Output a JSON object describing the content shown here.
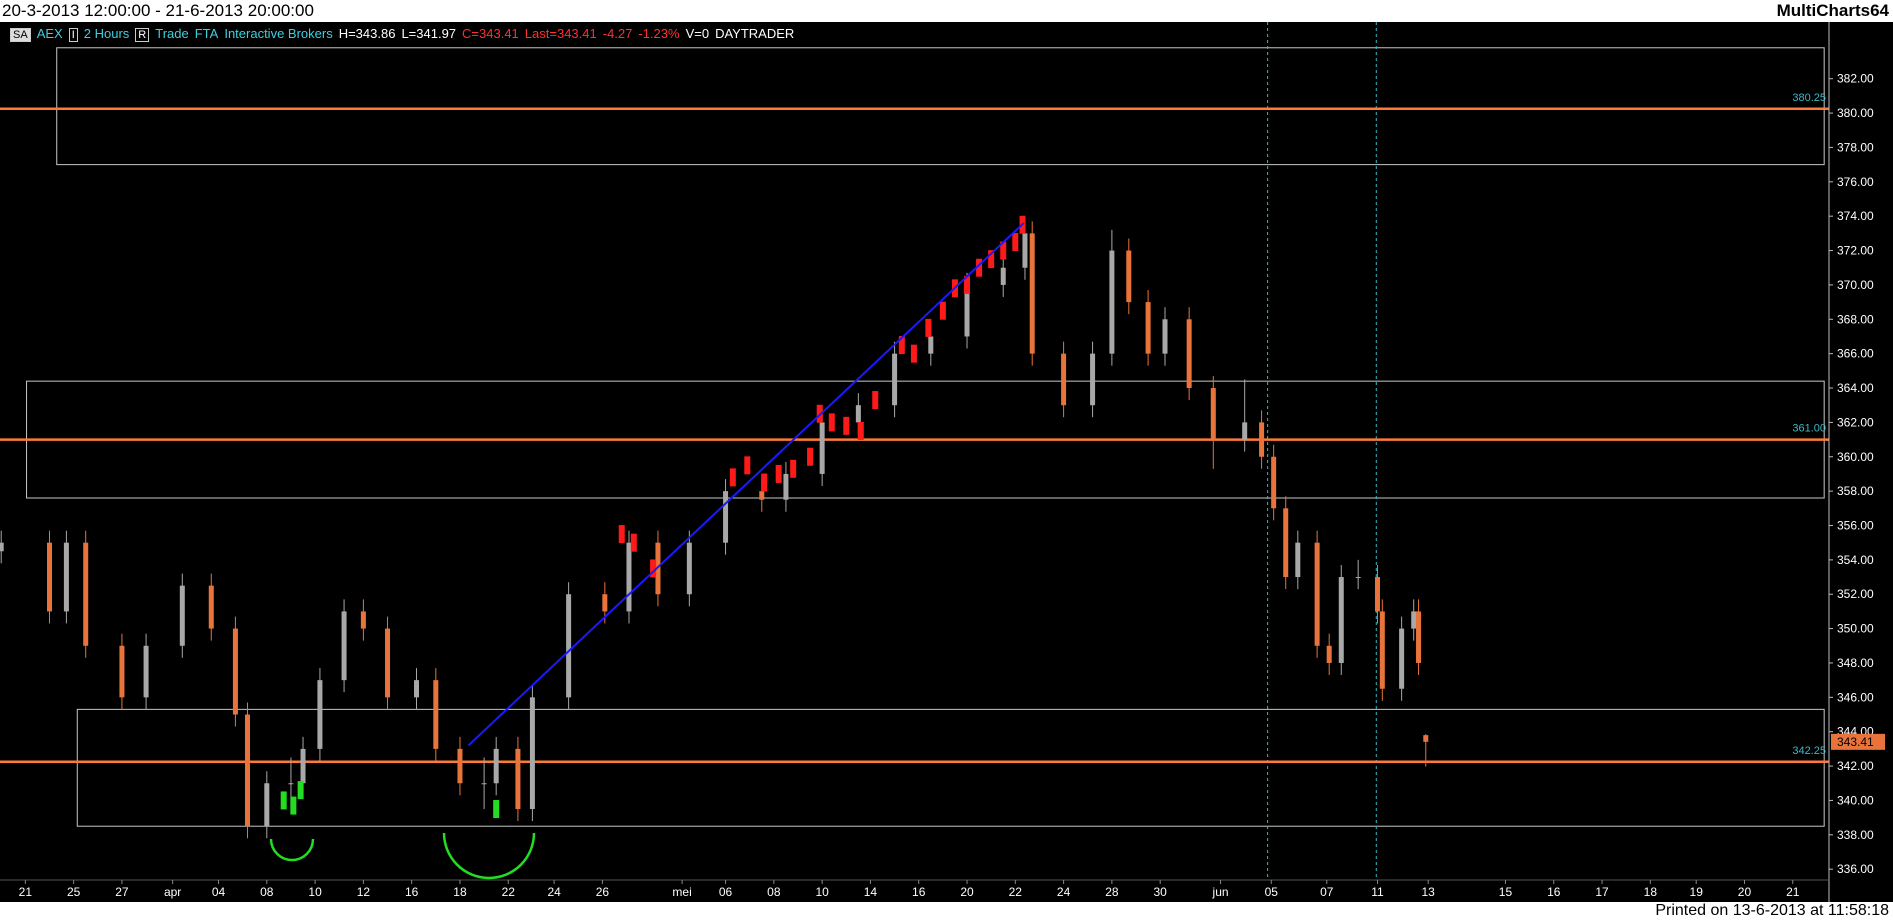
{
  "header": {
    "range": "20-3-2013 12:00:00 - 21-6-2013 20:00:00",
    "app": "MultiCharts64",
    "footer": "Printed on 13-6-2013 at 11:58:18"
  },
  "toolbar": {
    "badge": "SA",
    "symbol": "AEX",
    "i": "I",
    "interval": "2 Hours",
    "r": "R",
    "trade": "Trade",
    "fta": "FTA",
    "broker": "Interactive Brokers",
    "high": "H=343.86",
    "low": "L=341.97",
    "close": "C=343.41",
    "last": "Last=343.41",
    "change": "-4.27",
    "change_pct": "-1.23%",
    "volume": "V=0",
    "template": "DAYTRADER"
  },
  "chart_data": {
    "type": "candlestick",
    "x": [
      0,
      2,
      2.7,
      3.5,
      5,
      6,
      7.5,
      8.7,
      9.7,
      10.2,
      11,
      12,
      12.5,
      13.2,
      14.2,
      15,
      16,
      17.2,
      18,
      19,
      20,
      20.5,
      21.4,
      22,
      23.5,
      25,
      26,
      27.2,
      28.5,
      30,
      31.5,
      32.5,
      34,
      35.5,
      37,
      38.5,
      40,
      41.5,
      42.4,
      42.7,
      44,
      45.2,
      46,
      46.7,
      47.5,
      48.2,
      49.2,
      50.2,
      51.5,
      52.2,
      52.7,
      53.2,
      53.7,
      54.5,
      55,
      55.5,
      56.2,
      57,
      57.2,
      58,
      58.5,
      58.7,
      59
    ],
    "open": [
      354.5,
      355,
      351,
      355,
      349,
      346,
      349,
      352.5,
      350,
      345,
      338.5,
      341,
      341,
      343,
      347,
      351,
      350,
      346,
      347,
      343,
      341,
      341,
      343,
      339.5,
      346,
      352,
      351,
      355,
      352,
      355,
      358,
      357.5,
      359,
      362,
      363,
      366,
      367,
      370,
      371,
      373,
      366,
      363,
      366,
      372,
      369,
      366,
      368,
      364,
      361,
      362,
      360,
      357,
      353,
      355,
      349,
      348,
      353,
      353,
      351,
      346.5,
      350,
      351,
      343.8
    ],
    "high": [
      355.7,
      355.7,
      355.7,
      355.7,
      349.7,
      349.7,
      353.2,
      353.2,
      350.7,
      345.7,
      341.7,
      342.5,
      343.7,
      347.7,
      351.7,
      351.7,
      350.7,
      347.7,
      347.7,
      343.7,
      342.5,
      343.7,
      343.7,
      346.7,
      352.7,
      352.7,
      355.7,
      355.7,
      355.7,
      358.7,
      358.7,
      359.7,
      362.7,
      363.7,
      366.7,
      367.7,
      370.7,
      371.7,
      373.7,
      373.7,
      366.7,
      366.7,
      373.2,
      372.7,
      369.7,
      368.7,
      368.7,
      364.7,
      364.5,
      362.7,
      360.7,
      357.7,
      355.7,
      355.7,
      349.7,
      353.7,
      354,
      353.7,
      351.7,
      350.7,
      351.7,
      351.7,
      343.86
    ],
    "low": [
      353.8,
      350.3,
      350.3,
      348.3,
      345.3,
      345.3,
      348.3,
      349.3,
      344.3,
      337.8,
      337.8,
      339.5,
      340.3,
      342.3,
      346.3,
      349.3,
      345.3,
      345.3,
      342.3,
      340.3,
      339.5,
      340.3,
      338.8,
      338.8,
      345.3,
      350.3,
      350.3,
      351.3,
      351.3,
      354.3,
      356.8,
      356.8,
      358.3,
      361.3,
      362.3,
      365.3,
      366.3,
      369.3,
      370.3,
      365.3,
      362.3,
      362.3,
      365.3,
      368.3,
      365.3,
      365.3,
      363.3,
      359.3,
      360.3,
      359.3,
      356.3,
      352.3,
      352.3,
      348.3,
      347.3,
      347.3,
      352.3,
      350.3,
      345.8,
      345.8,
      349.3,
      347.3,
      341.97
    ],
    "close": [
      355,
      351,
      355,
      349,
      346,
      349,
      352.5,
      350,
      345,
      338.5,
      341,
      341,
      343,
      347,
      351,
      350,
      346,
      347,
      343,
      341,
      341,
      343,
      339.5,
      346,
      352,
      351,
      355,
      352,
      355,
      358,
      357.5,
      359,
      362,
      363,
      366,
      367,
      370,
      371,
      373,
      366,
      363,
      366,
      372,
      369,
      366,
      368,
      364,
      361,
      362,
      360,
      357,
      353,
      355,
      349,
      348,
      353,
      353,
      351,
      346.5,
      350,
      351,
      348,
      343.41
    ],
    "up_color": "#a8a8a8",
    "down_color": "#e8743b",
    "xlim": [
      -0.05,
      75.7
    ],
    "ylim": [
      335.37,
      385.3
    ],
    "xticks": [
      {
        "value": 1,
        "label": "21"
      },
      {
        "value": 3,
        "label": "25"
      },
      {
        "value": 5,
        "label": "27"
      },
      {
        "value": 7.1,
        "label": "apr"
      },
      {
        "value": 9,
        "label": "04"
      },
      {
        "value": 11,
        "label": "08"
      },
      {
        "value": 13,
        "label": "10"
      },
      {
        "value": 15,
        "label": "12"
      },
      {
        "value": 17,
        "label": "16"
      },
      {
        "value": 19,
        "label": "18"
      },
      {
        "value": 21,
        "label": "22"
      },
      {
        "value": 22.9,
        "label": "24"
      },
      {
        "value": 24.9,
        "label": "26"
      },
      {
        "value": 28.2,
        "label": "mei"
      },
      {
        "value": 30,
        "label": "06"
      },
      {
        "value": 32,
        "label": "08"
      },
      {
        "value": 34,
        "label": "10"
      },
      {
        "value": 36,
        "label": "14"
      },
      {
        "value": 38,
        "label": "16"
      },
      {
        "value": 40,
        "label": "20"
      },
      {
        "value": 42,
        "label": "22"
      },
      {
        "value": 44,
        "label": "24"
      },
      {
        "value": 46,
        "label": "28"
      },
      {
        "value": 48,
        "label": "30"
      },
      {
        "value": 50.5,
        "label": "jun"
      },
      {
        "value": 52.6,
        "label": "05"
      },
      {
        "value": 54.9,
        "label": "07"
      },
      {
        "value": 57,
        "label": "11"
      },
      {
        "value": 59.1,
        "label": "13"
      },
      {
        "value": 62.3,
        "label": "15"
      },
      {
        "value": 64.3,
        "label": "16"
      },
      {
        "value": 66.3,
        "label": "17"
      },
      {
        "value": 68.3,
        "label": "18"
      },
      {
        "value": 70.2,
        "label": "19"
      },
      {
        "value": 72.2,
        "label": "20"
      },
      {
        "value": 74.2,
        "label": "21"
      }
    ],
    "yticks": [
      {
        "value": 336,
        "label": "336.00"
      },
      {
        "value": 338,
        "label": "338.00"
      },
      {
        "value": 340,
        "label": "340.00"
      },
      {
        "value": 342,
        "label": "342.00"
      },
      {
        "value": 344,
        "label": "344.00"
      },
      {
        "value": 346,
        "label": "346.00"
      },
      {
        "value": 348,
        "label": "348.00"
      },
      {
        "value": 350,
        "label": "350.00"
      },
      {
        "value": 352,
        "label": "352.00"
      },
      {
        "value": 354,
        "label": "354.00"
      },
      {
        "value": 356,
        "label": "356.00"
      },
      {
        "value": 358,
        "label": "358.00"
      },
      {
        "value": 360,
        "label": "360.00"
      },
      {
        "value": 362,
        "label": "362.00"
      },
      {
        "value": 364,
        "label": "364.00"
      },
      {
        "value": 366,
        "label": "366.00"
      },
      {
        "value": 368,
        "label": "368.00"
      },
      {
        "value": 370,
        "label": "370.00"
      },
      {
        "value": 372,
        "label": "372.00"
      },
      {
        "value": 374,
        "label": "374.00"
      },
      {
        "value": 376,
        "label": "376.00"
      },
      {
        "value": 378,
        "label": "378.00"
      },
      {
        "value": 380,
        "label": "380.00"
      },
      {
        "value": 382,
        "label": "382.00"
      }
    ],
    "hlines": [
      {
        "value": 380.25,
        "label": "380.25"
      },
      {
        "value": 361,
        "label": "361.00"
      },
      {
        "value": 342.25,
        "label": "342.25"
      }
    ],
    "hline_color": "#ff7a3a",
    "vlines": [
      52.45,
      56.95
    ],
    "vline_color": "#3fb7c7",
    "zones": [
      {
        "x": [
          2.3,
          75.5
        ],
        "values": [
          383.8,
          377
        ]
      },
      {
        "x": [
          1.05,
          75.5
        ],
        "values": [
          364.4,
          357.6
        ]
      },
      {
        "x": [
          3.15,
          75.5
        ],
        "values": [
          345.3,
          338.5
        ]
      }
    ],
    "zone_color": "#c8c8c8",
    "trendline": {
      "color": "#1a1aff",
      "x": [
        19.35,
        42.35
      ],
      "values": [
        343.2,
        373.6
      ]
    },
    "highlights": [
      {
        "color": "#ff1a1a",
        "x": [
          25.7,
          26.2,
          27,
          30.3,
          30.9,
          31.6,
          32.2,
          32.8,
          33.5,
          33.9,
          34.4,
          35,
          35.6,
          36.2,
          37.3,
          37.8,
          38.4,
          39,
          39.5,
          40,
          40.5,
          41,
          41.5,
          42,
          42.3
        ],
        "values": [
          355.5,
          355,
          353.5,
          358.8,
          359.5,
          358.5,
          359,
          359.3,
          360,
          362.5,
          362,
          361.8,
          361.5,
          363.3,
          366.5,
          366,
          367.5,
          368.5,
          369.8,
          370,
          371,
          371.5,
          372,
          372.5,
          373.5
        ]
      },
      {
        "color": "#22dd22",
        "x": [
          11.7,
          12.1,
          12.4,
          20.5
        ],
        "values": [
          340,
          339.7,
          340.6,
          339.5
        ]
      }
    ]
  }
}
